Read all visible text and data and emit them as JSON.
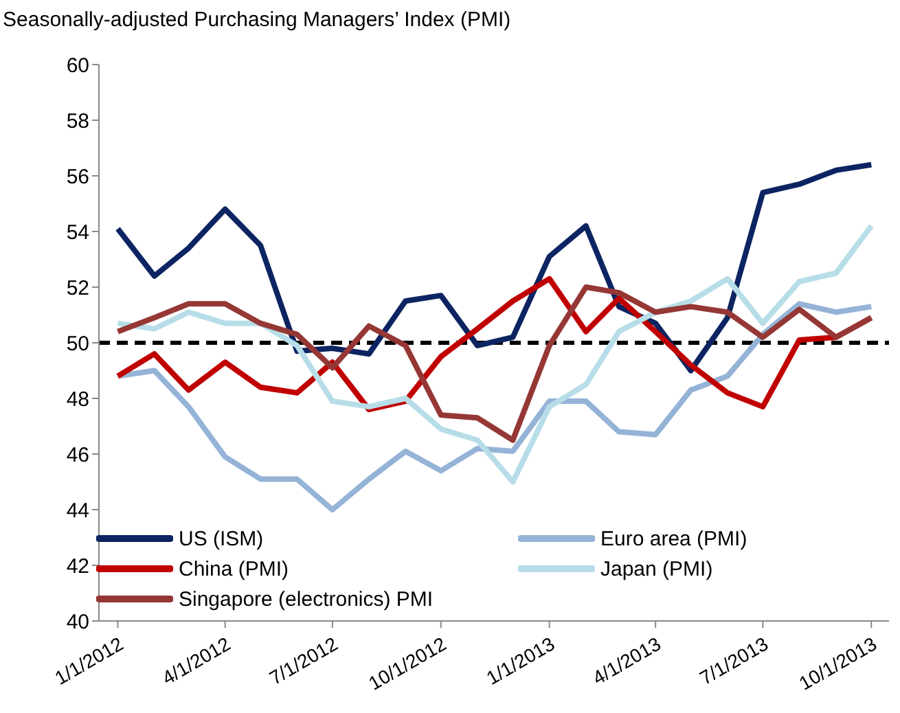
{
  "chart_data": {
    "type": "line",
    "title": "Seasonally-adjusted Purchasing Managers’ Index (PMI)",
    "x": [
      "2012-01",
      "2012-02",
      "2012-03",
      "2012-04",
      "2012-05",
      "2012-06",
      "2012-07",
      "2012-08",
      "2012-09",
      "2012-10",
      "2012-11",
      "2012-12",
      "2013-01",
      "2013-02",
      "2013-03",
      "2013-04",
      "2013-05",
      "2013-06",
      "2013-07",
      "2013-08",
      "2013-09",
      "2013-10"
    ],
    "series": [
      {
        "name": "US (ISM)",
        "color": "#0c2461",
        "values": [
          54.1,
          52.4,
          53.4,
          54.8,
          53.5,
          49.7,
          49.8,
          49.6,
          51.5,
          51.7,
          49.9,
          50.2,
          53.1,
          54.2,
          51.3,
          50.7,
          49.0,
          50.9,
          55.4,
          55.7,
          56.2,
          56.4
        ]
      },
      {
        "name": "Euro area (PMI)",
        "color": "#95b3d7",
        "values": [
          48.8,
          49.0,
          47.7,
          45.9,
          45.1,
          45.1,
          44.0,
          45.1,
          46.1,
          45.4,
          46.2,
          46.1,
          47.9,
          47.9,
          46.8,
          46.7,
          48.3,
          48.8,
          50.3,
          51.4,
          51.1,
          51.3
        ]
      },
      {
        "name": "China (PMI)",
        "color": "#c00000",
        "values": [
          48.8,
          49.6,
          48.3,
          49.3,
          48.4,
          48.2,
          49.3,
          47.6,
          47.9,
          49.5,
          50.5,
          51.5,
          52.3,
          50.4,
          51.6,
          50.4,
          49.2,
          48.2,
          47.7,
          50.1,
          50.2,
          50.9
        ]
      },
      {
        "name": "Japan (PMI)",
        "color": "#b7dee8",
        "values": [
          50.7,
          50.5,
          51.1,
          50.7,
          50.7,
          49.9,
          47.9,
          47.7,
          48.0,
          46.9,
          46.5,
          45.0,
          47.7,
          48.5,
          50.4,
          51.1,
          51.5,
          52.3,
          50.7,
          52.2,
          52.5,
          54.2
        ]
      },
      {
        "name": "Singapore (electronics) PMI",
        "color": "#953735",
        "values": [
          50.4,
          50.9,
          51.4,
          51.4,
          50.7,
          50.3,
          49.1,
          50.6,
          49.9,
          47.4,
          47.3,
          46.5,
          49.9,
          52.0,
          51.8,
          51.1,
          51.3,
          51.1,
          50.2,
          51.2,
          50.2,
          50.9
        ]
      }
    ],
    "xlim": [
      "2011-12-16",
      "2013-10-16"
    ],
    "xticks": [
      {
        "value": "2012-01-01",
        "label": "1/1/2012"
      },
      {
        "value": "2012-04-01",
        "label": "4/1/2012"
      },
      {
        "value": "2012-07-01",
        "label": "7/1/2012"
      },
      {
        "value": "2012-10-01",
        "label": "10/1/2012"
      },
      {
        "value": "2013-01-01",
        "label": "1/1/2013"
      },
      {
        "value": "2013-04-01",
        "label": "4/1/2013"
      },
      {
        "value": "2013-07-01",
        "label": "7/1/2013"
      },
      {
        "value": "2013-10-01",
        "label": "10/1/2013"
      }
    ],
    "ylim": [
      40,
      60
    ],
    "yticks": [
      40,
      42,
      44,
      46,
      48,
      50,
      52,
      54,
      56,
      58,
      60
    ],
    "ref_lines": [
      {
        "axis": "y",
        "value": 50,
        "color": "#000000",
        "line_style": "dashed"
      }
    ],
    "grid": false,
    "legend": "bottom",
    "marker": "none",
    "line_style": "solid"
  }
}
